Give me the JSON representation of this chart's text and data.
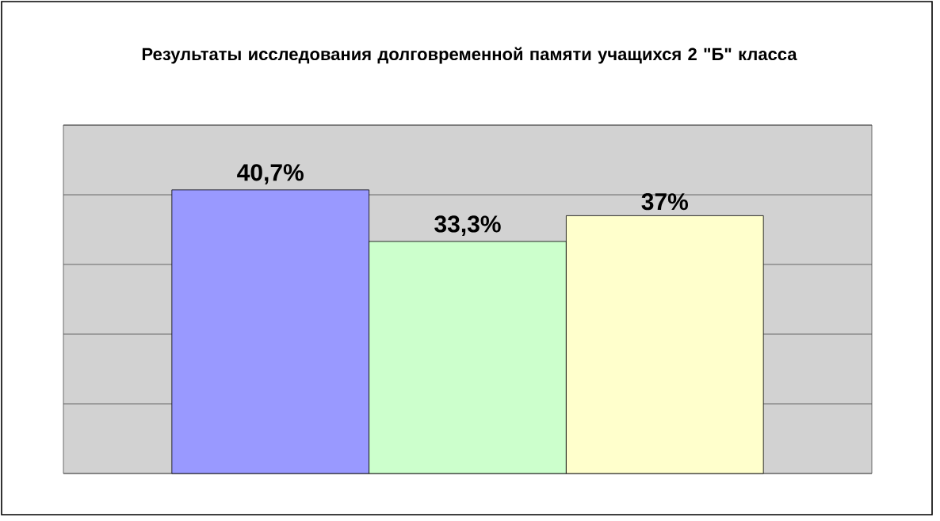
{
  "chart_data": {
    "type": "bar",
    "title": "Результаты исследования долговременной памяти учащихся 2 \"Б\" класса",
    "categories": [
      null,
      null,
      null
    ],
    "values": [
      40.7,
      33.3,
      37
    ],
    "value_labels": [
      "40,7%",
      "33,3%",
      "37%"
    ],
    "colors": [
      "#9999ff",
      "#ccffcc",
      "#ffffcc"
    ],
    "ylim": [
      0,
      50
    ],
    "yticks": [
      {
        "value": 0,
        "label": null
      },
      {
        "value": 10,
        "label": null
      },
      {
        "value": 20,
        "label": null
      },
      {
        "value": 30,
        "label": null
      },
      {
        "value": 40,
        "label": null
      },
      {
        "value": 50,
        "label": null
      }
    ],
    "grid": "y"
  }
}
